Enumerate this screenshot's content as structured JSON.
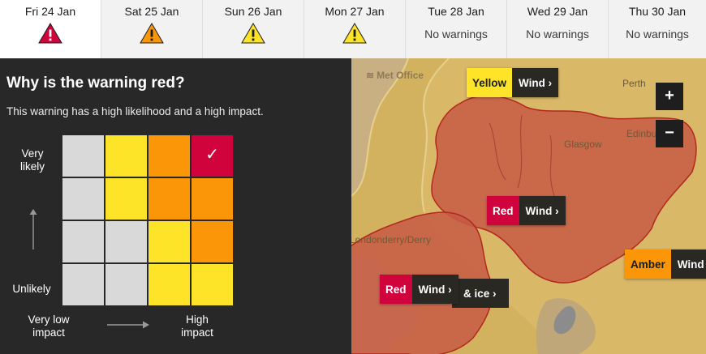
{
  "days": [
    {
      "label": "Fri 24 Jan",
      "warning": "red",
      "icon": "red-warning-icon",
      "note": ""
    },
    {
      "label": "Sat 25 Jan",
      "warning": "amber",
      "icon": "amber-warning-icon",
      "note": ""
    },
    {
      "label": "Sun 26 Jan",
      "warning": "yellow",
      "icon": "yellow-warning-icon",
      "note": ""
    },
    {
      "label": "Mon 27 Jan",
      "warning": "yellow",
      "icon": "yellow-warning-icon",
      "note": ""
    },
    {
      "label": "Tue 28 Jan",
      "warning": "none",
      "note": "No warnings"
    },
    {
      "label": "Wed 29 Jan",
      "warning": "none",
      "note": "No warnings"
    },
    {
      "label": "Thu 30 Jan",
      "warning": "none",
      "note": "No warnings"
    }
  ],
  "selected_day": 0,
  "panel": {
    "title": "Why is the warning red?",
    "description": "This warning has a high likelihood and a high impact.",
    "y_top": "Very likely",
    "y_bottom": "Unlikely",
    "x_left": "Very low impact",
    "x_right": "High impact"
  },
  "matrix": {
    "rows": [
      [
        "grey",
        "yellow",
        "amber",
        "red"
      ],
      [
        "grey",
        "yellow",
        "amber",
        "amber"
      ],
      [
        "grey",
        "grey",
        "yellow",
        "amber"
      ],
      [
        "grey",
        "grey",
        "yellow",
        "yellow"
      ]
    ],
    "selected": {
      "row": 0,
      "col": 3
    },
    "check_glyph": "✓"
  },
  "map": {
    "attribution": "Met Office",
    "places": [
      "Perth",
      "Glasgow",
      "Edinbu",
      "Londonderry/Derry"
    ],
    "labels": [
      {
        "level": "Yellow",
        "type": "Wind",
        "chevron": "›"
      },
      {
        "level": "Red",
        "type": "Wind",
        "chevron": "›"
      },
      {
        "level": "Amber",
        "type": "Wind",
        "chevron": ""
      },
      {
        "level": "Red",
        "type": "Wind",
        "chevron": "›"
      }
    ],
    "ice_text": "& ice ›",
    "zoom_in": "+",
    "zoom_out": "−"
  },
  "colors": {
    "red": "#d0033d",
    "amber": "#fb9609",
    "yellow": "#fde428",
    "grey": "#d9d9d9",
    "panel_bg": "#282828"
  }
}
